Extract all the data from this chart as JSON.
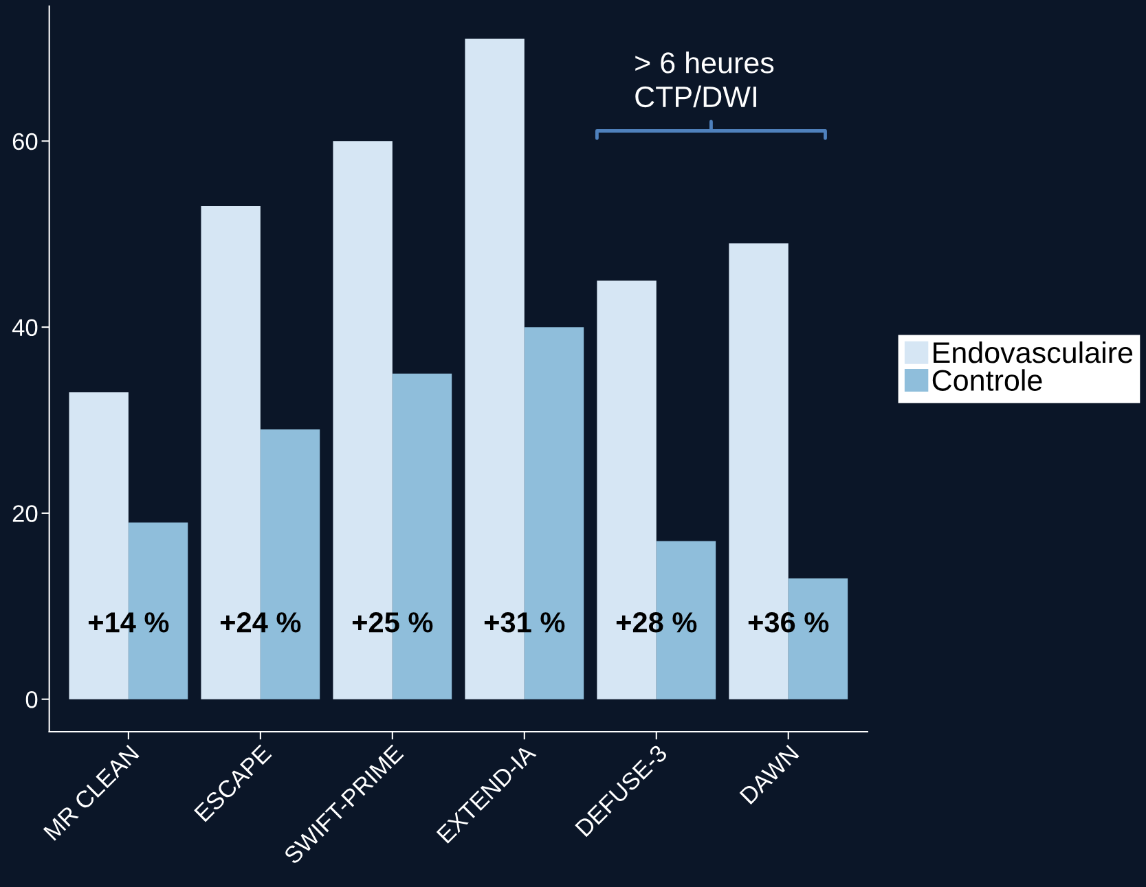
{
  "chart_data": {
    "type": "bar",
    "categories": [
      "MR CLEAN",
      "ESCAPE",
      "SWIFT-PRIME",
      "EXTEND-IA",
      "DEFUSE-3",
      "DAWN"
    ],
    "series": [
      {
        "name": "Endovasculaire",
        "color": "#d6e6f4",
        "values": [
          33,
          53,
          60,
          71,
          45,
          49
        ]
      },
      {
        "name": "Controle",
        "color": "#8fbedb",
        "values": [
          19,
          29,
          35,
          40,
          17,
          13
        ]
      }
    ],
    "ylim": [
      -3.5,
      74.5
    ],
    "yticks": [
      0,
      20,
      40,
      60
    ],
    "grid": false,
    "legend": "right",
    "annotations": [
      {
        "text": "+14 %",
        "x": "MR CLEAN",
        "y": 8
      },
      {
        "text": "+24 %",
        "x": "ESCAPE",
        "y": 8
      },
      {
        "text": "+25 %",
        "x": "SWIFT-PRIME",
        "y": 8
      },
      {
        "text": "+31 %",
        "x": "EXTEND-IA",
        "y": 8
      },
      {
        "text": "+28 %",
        "x": "DEFUSE-3",
        "y": 8
      },
      {
        "text": "+36 %",
        "x": "DAWN",
        "y": 8
      },
      "> 6 heures\nCTP/DWI"
    ]
  }
}
